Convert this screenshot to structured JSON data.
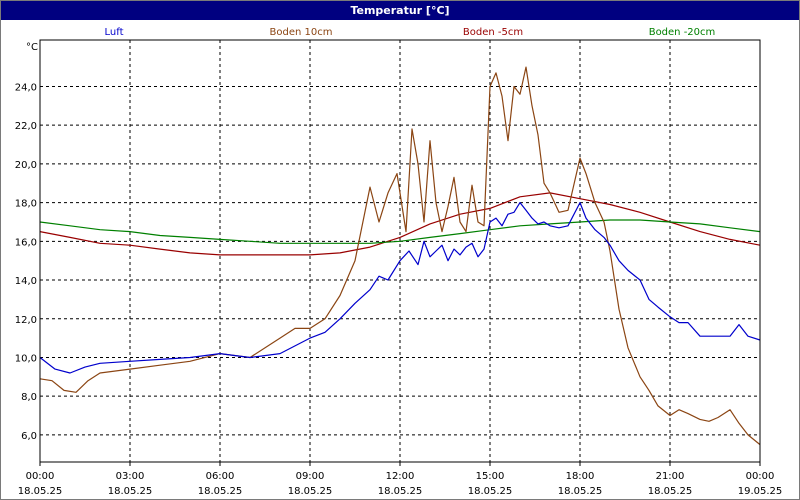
{
  "window": {
    "title": "Temperatur [°C]"
  },
  "chart_data": {
    "type": "line",
    "title": "Temperatur [°C]",
    "ylabel": "°C",
    "xlabel": "",
    "ylim": [
      4.6,
      26.4
    ],
    "xlim": [
      0,
      24
    ],
    "grid": true,
    "legend_position": "top",
    "y_ticks": [
      6,
      8,
      10,
      12,
      14,
      16,
      18,
      20,
      22,
      24
    ],
    "y_tick_labels": [
      "6,0",
      "8,0",
      "10,0",
      "12,0",
      "14,0",
      "16,0",
      "18,0",
      "20,0",
      "22,0",
      "24,0"
    ],
    "x_ticks": [
      0,
      3,
      6,
      9,
      12,
      15,
      18,
      21,
      24
    ],
    "x_tick_labels": [
      [
        "00:00",
        "18.05.25"
      ],
      [
        "03:00",
        "18.05.25"
      ],
      [
        "06:00",
        "18.05.25"
      ],
      [
        "09:00",
        "18.05.25"
      ],
      [
        "12:00",
        "18.05.25"
      ],
      [
        "15:00",
        "18.05.25"
      ],
      [
        "18:00",
        "18.05.25"
      ],
      [
        "21:00",
        "18.05.25"
      ],
      [
        "00:00",
        "19.05.25"
      ]
    ],
    "series": [
      {
        "name": "Luft",
        "color": "#0000cc",
        "x": [
          0,
          0.5,
          1,
          1.5,
          2,
          3,
          4,
          5,
          6,
          7,
          8,
          8.5,
          9,
          9.5,
          10,
          10.5,
          11,
          11.3,
          11.6,
          12,
          12.3,
          12.6,
          12.8,
          13,
          13.2,
          13.4,
          13.6,
          13.8,
          14,
          14.2,
          14.4,
          14.6,
          14.8,
          15,
          15.2,
          15.4,
          15.6,
          15.8,
          16,
          16.2,
          16.4,
          16.6,
          16.8,
          17,
          17.3,
          17.6,
          18,
          18.2,
          18.5,
          18.8,
          19,
          19.3,
          19.6,
          20,
          20.3,
          20.6,
          21,
          21.3,
          21.6,
          22,
          22.3,
          22.6,
          23,
          23.3,
          23.6,
          24
        ],
        "y": [
          10.0,
          9.4,
          9.2,
          9.5,
          9.7,
          9.8,
          9.9,
          10.0,
          10.2,
          10.0,
          10.2,
          10.6,
          11.0,
          11.3,
          12.0,
          12.8,
          13.5,
          14.2,
          14.0,
          15.0,
          15.5,
          14.8,
          16.0,
          15.2,
          15.5,
          15.8,
          15.0,
          15.6,
          15.3,
          15.7,
          15.9,
          15.2,
          15.6,
          17.0,
          17.2,
          16.8,
          17.4,
          17.5,
          18.0,
          17.6,
          17.2,
          16.9,
          17.0,
          16.8,
          16.7,
          16.8,
          18.0,
          17.2,
          16.6,
          16.2,
          15.8,
          15.0,
          14.5,
          14.0,
          13.0,
          12.6,
          12.1,
          11.8,
          11.8,
          11.1,
          11.1,
          11.1,
          11.1,
          11.7,
          11.1,
          10.9
        ]
      },
      {
        "name": "Boden 10cm",
        "color": "#8b4513",
        "x": [
          0,
          0.4,
          0.8,
          1.2,
          1.6,
          2,
          3,
          4,
          5,
          6,
          7,
          8,
          8.5,
          9,
          9.5,
          10,
          10.5,
          11,
          11.3,
          11.6,
          11.9,
          12.2,
          12.4,
          12.6,
          12.8,
          13,
          13.2,
          13.4,
          13.6,
          13.8,
          14,
          14.2,
          14.4,
          14.6,
          14.8,
          15,
          15.2,
          15.4,
          15.6,
          15.8,
          16,
          16.2,
          16.4,
          16.6,
          16.8,
          17,
          17.3,
          17.6,
          18,
          18.2,
          18.5,
          18.8,
          19,
          19.3,
          19.6,
          20,
          20.3,
          20.6,
          21,
          21.3,
          21.6,
          22,
          22.3,
          22.6,
          23,
          23.3,
          23.6,
          24
        ],
        "y": [
          8.9,
          8.8,
          8.3,
          8.2,
          8.8,
          9.2,
          9.4,
          9.6,
          9.8,
          10.2,
          10.0,
          11.0,
          11.5,
          11.5,
          12.0,
          13.2,
          15.0,
          18.8,
          17.0,
          18.5,
          19.5,
          16.5,
          21.8,
          20.0,
          17.0,
          21.2,
          18.0,
          16.5,
          17.8,
          19.3,
          17.0,
          16.5,
          18.9,
          17.0,
          16.8,
          24.0,
          24.7,
          23.5,
          21.2,
          24.0,
          23.6,
          25.0,
          23.0,
          21.5,
          19.0,
          18.5,
          17.5,
          17.6,
          20.3,
          19.5,
          18.0,
          17.0,
          15.5,
          12.5,
          10.5,
          9.0,
          8.3,
          7.5,
          7.0,
          7.3,
          7.1,
          6.8,
          6.7,
          6.9,
          7.3,
          6.6,
          6.0,
          5.5
        ]
      },
      {
        "name": "Boden -5cm",
        "color": "#990000",
        "x": [
          0,
          1,
          2,
          3,
          4,
          5,
          6,
          7,
          8,
          9,
          10,
          11,
          12,
          13,
          14,
          15,
          16,
          17,
          18,
          19,
          20,
          21,
          22,
          23,
          24
        ],
        "y": [
          16.5,
          16.2,
          15.9,
          15.8,
          15.6,
          15.4,
          15.3,
          15.3,
          15.3,
          15.3,
          15.4,
          15.7,
          16.2,
          16.9,
          17.4,
          17.7,
          18.3,
          18.5,
          18.2,
          17.9,
          17.5,
          17.0,
          16.5,
          16.1,
          15.8
        ]
      },
      {
        "name": "Boden -20cm",
        "color": "#008000",
        "x": [
          0,
          1,
          2,
          3,
          4,
          5,
          6,
          7,
          8,
          9,
          10,
          11,
          12,
          13,
          14,
          15,
          16,
          17,
          18,
          19,
          20,
          21,
          22,
          23,
          24
        ],
        "y": [
          17.0,
          16.8,
          16.6,
          16.5,
          16.3,
          16.2,
          16.1,
          16.0,
          15.9,
          15.9,
          15.9,
          15.9,
          16.0,
          16.2,
          16.4,
          16.6,
          16.8,
          16.9,
          17.0,
          17.1,
          17.1,
          17.0,
          16.9,
          16.7,
          16.5
        ]
      }
    ]
  }
}
